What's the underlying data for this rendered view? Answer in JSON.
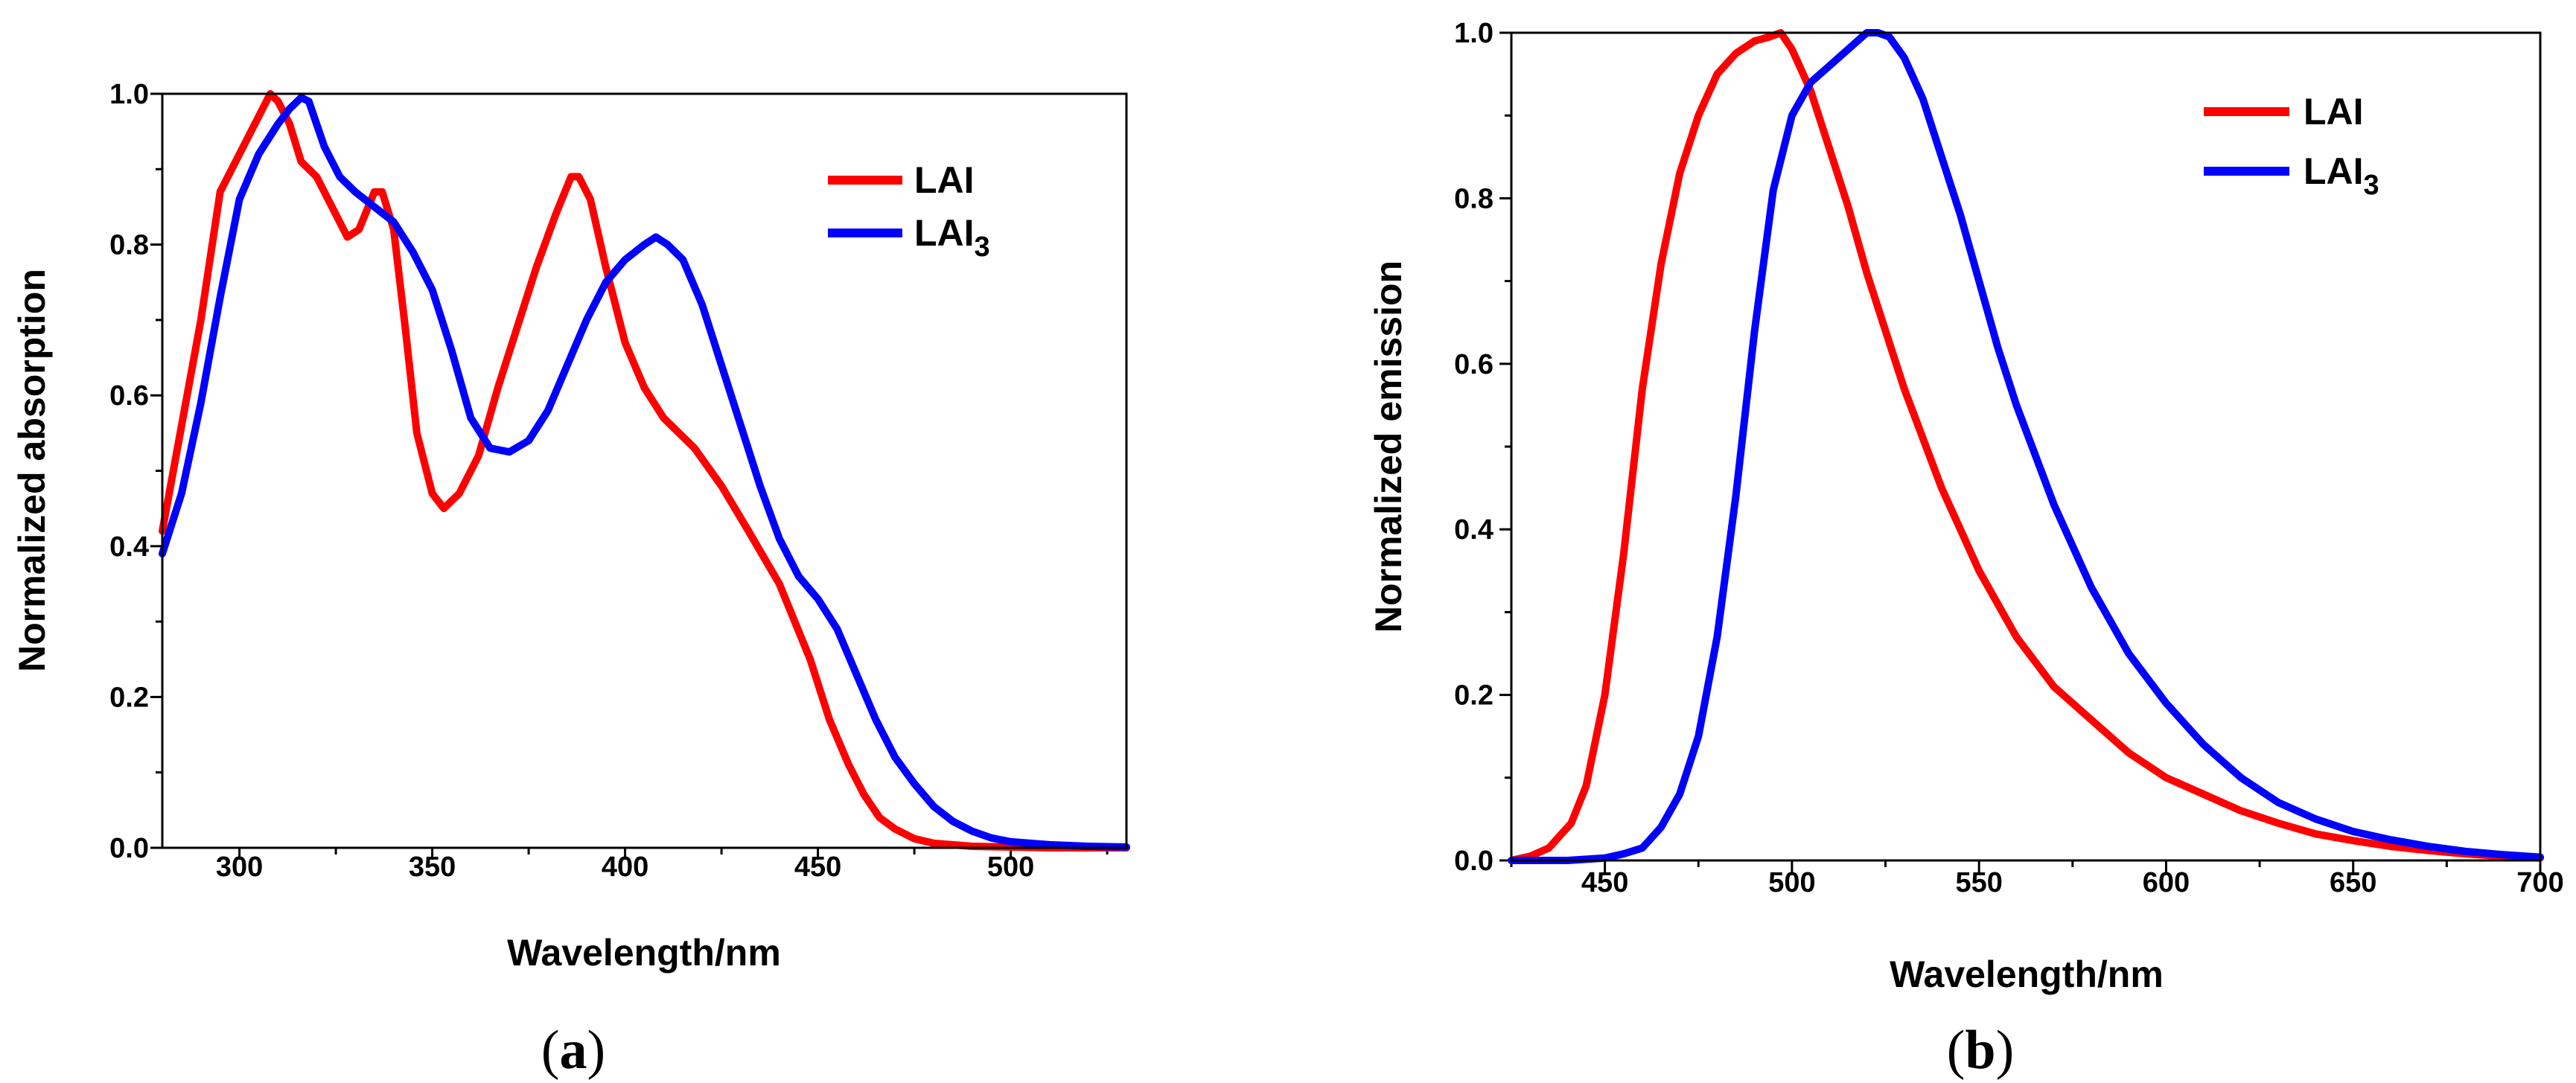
{
  "chart_data": [
    {
      "type": "line",
      "panel_label": "(a)",
      "xlabel": "Wavelength/nm",
      "ylabel": "Normalized absorption",
      "xlim": [
        280,
        530
      ],
      "ylim": [
        0,
        1.0
      ],
      "xticks": [
        "300",
        "350",
        "400",
        "450",
        "500"
      ],
      "yticks": [
        "0.0",
        "0.2",
        "0.4",
        "0.6",
        "0.8",
        "1.0"
      ],
      "legend": {
        "position": "top-right",
        "entries": [
          "LAI",
          "LAI3"
        ]
      },
      "series": [
        {
          "name": "LAI",
          "color": "#ff0000",
          "x": [
            280,
            285,
            290,
            295,
            300,
            305,
            308,
            310,
            313,
            316,
            320,
            325,
            328,
            331,
            335,
            337,
            340,
            343,
            346,
            350,
            353,
            357,
            362,
            367,
            372,
            377,
            382,
            386,
            388,
            391,
            395,
            400,
            405,
            410,
            418,
            425,
            432,
            440,
            448,
            453,
            458,
            462,
            466,
            470,
            475,
            480,
            490,
            500,
            510,
            520,
            530
          ],
          "values": [
            0.42,
            0.56,
            0.7,
            0.87,
            0.92,
            0.97,
            1.0,
            0.99,
            0.96,
            0.91,
            0.89,
            0.84,
            0.81,
            0.82,
            0.87,
            0.87,
            0.82,
            0.69,
            0.55,
            0.47,
            0.45,
            0.47,
            0.52,
            0.61,
            0.69,
            0.77,
            0.84,
            0.89,
            0.89,
            0.86,
            0.77,
            0.67,
            0.61,
            0.57,
            0.53,
            0.48,
            0.42,
            0.35,
            0.25,
            0.17,
            0.11,
            0.07,
            0.04,
            0.025,
            0.012,
            0.006,
            0.002,
            0.001,
            0.0,
            0.0,
            0.0
          ]
        },
        {
          "name": "LAI3",
          "color": "#0000ff",
          "x": [
            280,
            285,
            290,
            295,
            300,
            305,
            310,
            313,
            316,
            318,
            322,
            326,
            330,
            335,
            340,
            345,
            350,
            355,
            360,
            365,
            370,
            375,
            380,
            385,
            390,
            395,
            400,
            405,
            408,
            411,
            415,
            420,
            425,
            430,
            435,
            440,
            445,
            450,
            455,
            460,
            465,
            470,
            475,
            480,
            485,
            490,
            495,
            500,
            510,
            520,
            530
          ],
          "values": [
            0.39,
            0.47,
            0.59,
            0.73,
            0.86,
            0.92,
            0.96,
            0.98,
            0.995,
            0.99,
            0.93,
            0.89,
            0.87,
            0.85,
            0.83,
            0.79,
            0.74,
            0.66,
            0.57,
            0.53,
            0.525,
            0.54,
            0.58,
            0.64,
            0.7,
            0.75,
            0.78,
            0.8,
            0.81,
            0.8,
            0.78,
            0.72,
            0.64,
            0.56,
            0.48,
            0.41,
            0.36,
            0.33,
            0.29,
            0.23,
            0.17,
            0.12,
            0.085,
            0.055,
            0.035,
            0.022,
            0.013,
            0.008,
            0.004,
            0.002,
            0.001
          ]
        }
      ]
    },
    {
      "type": "line",
      "panel_label": "(b)",
      "xlabel": "Wavelength/nm",
      "ylabel": "Normalized emission",
      "xlim": [
        425,
        700
      ],
      "ylim": [
        0,
        1.0
      ],
      "xticks": [
        "450",
        "500",
        "550",
        "600",
        "650",
        "700"
      ],
      "yticks": [
        "0.0",
        "0.2",
        "0.4",
        "0.6",
        "0.8",
        "1.0"
      ],
      "legend": {
        "position": "top-right",
        "entries": [
          "LAI",
          "LAI3"
        ]
      },
      "series": [
        {
          "name": "LAI",
          "color": "#ff0000",
          "x": [
            425,
            430,
            435,
            438,
            441,
            445,
            450,
            455,
            460,
            465,
            470,
            475,
            480,
            485,
            490,
            494,
            497,
            500,
            505,
            510,
            515,
            520,
            525,
            530,
            535,
            540,
            545,
            550,
            555,
            560,
            565,
            570,
            575,
            580,
            590,
            600,
            610,
            620,
            630,
            640,
            650,
            660,
            670,
            680,
            690,
            700
          ],
          "values": [
            0.0,
            0.005,
            0.015,
            0.03,
            0.045,
            0.09,
            0.2,
            0.37,
            0.57,
            0.72,
            0.83,
            0.9,
            0.95,
            0.975,
            0.99,
            0.995,
            1.0,
            0.98,
            0.93,
            0.86,
            0.79,
            0.71,
            0.64,
            0.57,
            0.51,
            0.45,
            0.4,
            0.35,
            0.31,
            0.27,
            0.24,
            0.21,
            0.19,
            0.17,
            0.13,
            0.1,
            0.08,
            0.06,
            0.045,
            0.032,
            0.024,
            0.017,
            0.012,
            0.008,
            0.005,
            0.003
          ]
        },
        {
          "name": "LAI3",
          "color": "#0000ff",
          "x": [
            425,
            440,
            450,
            455,
            460,
            465,
            470,
            475,
            480,
            485,
            490,
            495,
            500,
            505,
            510,
            515,
            520,
            523,
            526,
            530,
            535,
            540,
            545,
            550,
            555,
            560,
            565,
            570,
            575,
            580,
            590,
            600,
            610,
            620,
            630,
            640,
            650,
            660,
            670,
            680,
            690,
            700
          ],
          "values": [
            0.0,
            0.0,
            0.003,
            0.008,
            0.015,
            0.04,
            0.08,
            0.15,
            0.27,
            0.44,
            0.64,
            0.81,
            0.9,
            0.94,
            0.96,
            0.98,
            1.0,
            1.0,
            0.995,
            0.97,
            0.92,
            0.85,
            0.78,
            0.7,
            0.62,
            0.55,
            0.49,
            0.43,
            0.38,
            0.33,
            0.25,
            0.19,
            0.14,
            0.1,
            0.07,
            0.05,
            0.035,
            0.025,
            0.017,
            0.011,
            0.007,
            0.004
          ]
        }
      ]
    }
  ]
}
